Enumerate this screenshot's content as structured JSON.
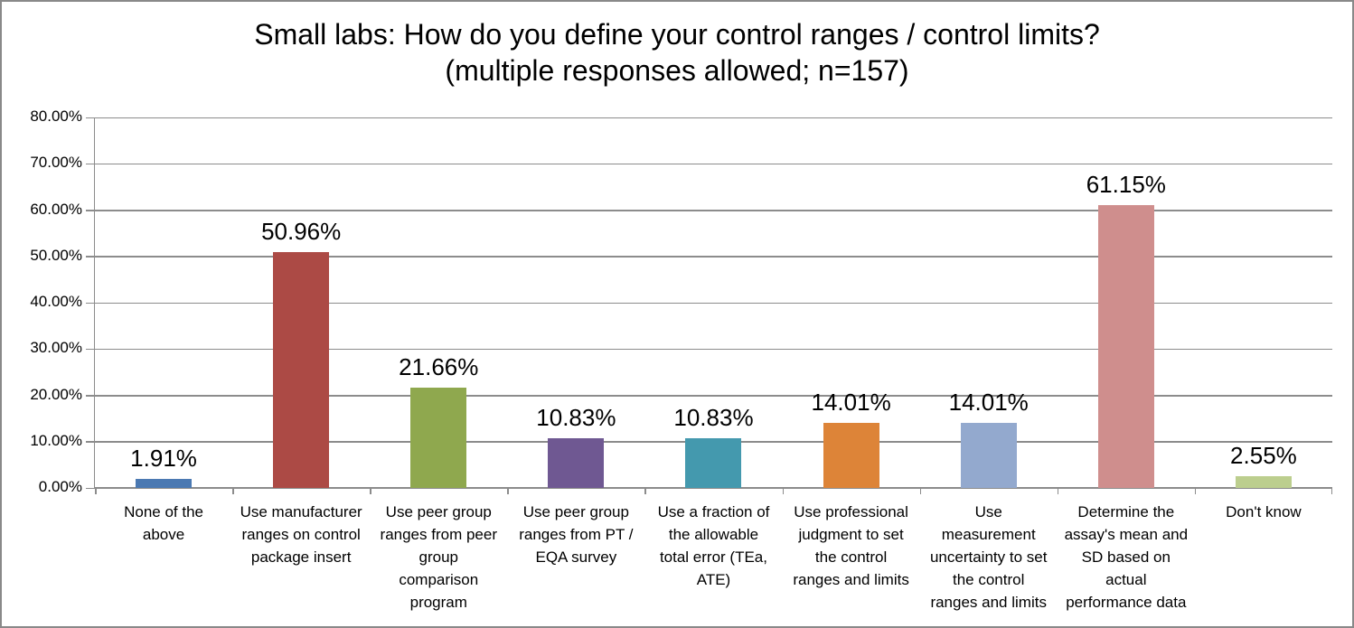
{
  "header": {
    "title_line1": "Small labs: How do you define your control ranges / control limits?",
    "title_line2": "(multiple responses allowed; n=157)"
  },
  "chart_data": {
    "type": "bar",
    "title": "Small labs: How do you define your control ranges / control limits? (multiple responses allowed; n=157)",
    "n": 157,
    "categories": [
      "None of the above",
      "Use manufacturer ranges on control package insert",
      "Use peer group ranges from peer group comparison program",
      "Use peer group ranges from PT / EQA survey",
      "Use a fraction of the allowable total error (TEa, ATE)",
      "Use professional judgment to set the control ranges and limits",
      "Use measurement uncertainty to set the control ranges and limits",
      "Determine the assay's mean and SD based on actual performance data",
      "Don't know"
    ],
    "values": [
      1.91,
      50.96,
      21.66,
      10.83,
      10.83,
      14.01,
      14.01,
      61.15,
      2.55
    ],
    "value_labels": [
      "1.91%",
      "50.96%",
      "21.66%",
      "10.83%",
      "10.83%",
      "14.01%",
      "14.01%",
      "61.15%",
      "2.55%"
    ],
    "bar_colors": [
      "#4B79B2",
      "#AC4A45",
      "#8FA84E",
      "#6F5892",
      "#4499AE",
      "#DD8438",
      "#93A9CE",
      "#CF8E8D",
      "#BCCE8E"
    ],
    "xlabel": "",
    "ylabel": "",
    "ylim": [
      0,
      80
    ],
    "ytick_labels": [
      "0.00%",
      "10.00%",
      "20.00%",
      "30.00%",
      "40.00%",
      "50.00%",
      "60.00%",
      "70.00%",
      "80.00%"
    ],
    "grid": "horizontal gridlines on",
    "legend_position": "none",
    "axis_color": "#8C8C8C",
    "text_color": "#000000",
    "background_color": "#FFFFFF"
  }
}
